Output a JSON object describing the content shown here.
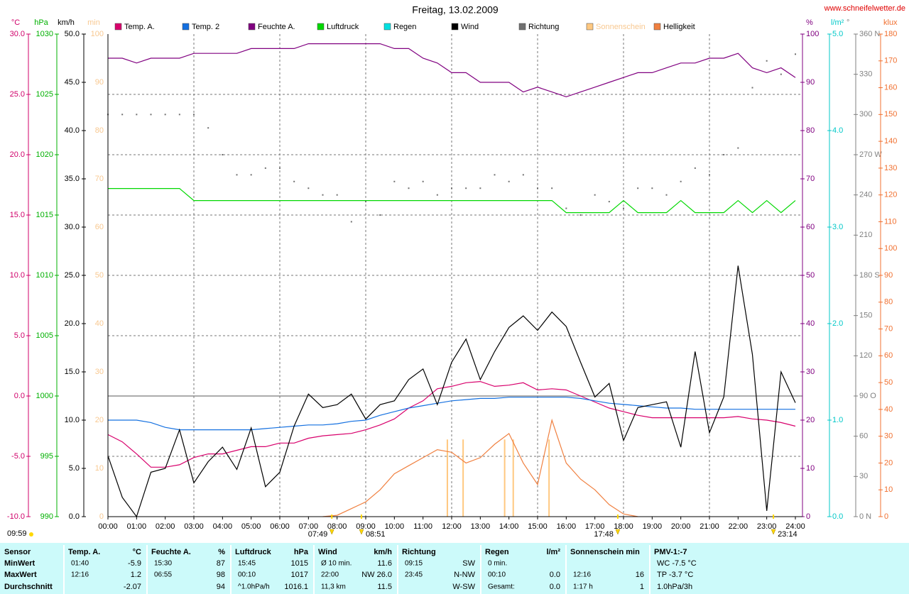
{
  "chart_data": {
    "type": "line",
    "title": "Freitag, 13.02.2009",
    "source": "www.schneifelwetter.de",
    "x": [
      0,
      0.5,
      1,
      1.5,
      2,
      2.5,
      3,
      3.5,
      4,
      4.5,
      5,
      5.5,
      6,
      6.5,
      7,
      7.5,
      8,
      8.5,
      9,
      9.5,
      10,
      10.5,
      11,
      11.5,
      12,
      12.5,
      13,
      13.5,
      14,
      14.5,
      15,
      15.5,
      16,
      16.5,
      17,
      17.5,
      18,
      18.5,
      19,
      19.5,
      20,
      20.5,
      21,
      21.5,
      22,
      22.5,
      23,
      23.5,
      24
    ],
    "xlim": [
      0,
      24
    ],
    "xticks": [
      {
        "value": 0,
        "label": "00:00"
      },
      {
        "value": 1,
        "label": "01:00"
      },
      {
        "value": 2,
        "label": "02:00"
      },
      {
        "value": 3,
        "label": "03:00"
      },
      {
        "value": 4,
        "label": "04:00"
      },
      {
        "value": 5,
        "label": "05:00"
      },
      {
        "value": 6,
        "label": "06:00"
      },
      {
        "value": 7,
        "label": "07:00"
      },
      {
        "value": 8,
        "label": "08:00"
      },
      {
        "value": 9,
        "label": "09:00"
      },
      {
        "value": 10,
        "label": "10:00"
      },
      {
        "value": 11,
        "label": "11:00"
      },
      {
        "value": 12,
        "label": "12:00"
      },
      {
        "value": 13,
        "label": "13:00"
      },
      {
        "value": 14,
        "label": "14:00"
      },
      {
        "value": 15,
        "label": "15:00"
      },
      {
        "value": 16,
        "label": "16:00"
      },
      {
        "value": 17,
        "label": "17:00"
      },
      {
        "value": 18,
        "label": "18:00"
      },
      {
        "value": 19,
        "label": "19:00"
      },
      {
        "value": 20,
        "label": "20:00"
      },
      {
        "value": 21,
        "label": "21:00"
      },
      {
        "value": 22,
        "label": "22:00"
      },
      {
        "value": 23,
        "label": "23:00"
      },
      {
        "value": 24,
        "label": "24:00"
      }
    ],
    "grid": true,
    "axes": {
      "temp": {
        "label": "°C",
        "color": "#d0006a",
        "side": "left",
        "lim": [
          -10,
          30
        ],
        "ticks": [
          {
            "value": -10,
            "label": "-10.0"
          },
          {
            "value": -5,
            "label": "-5.0"
          },
          {
            "value": 0,
            "label": "0.0"
          },
          {
            "value": 5,
            "label": "5.0"
          },
          {
            "value": 10,
            "label": "10.0"
          },
          {
            "value": 15,
            "label": "15.0"
          },
          {
            "value": 20,
            "label": "20.0"
          },
          {
            "value": 25,
            "label": "25.0"
          },
          {
            "value": 30,
            "label": "30.0"
          }
        ]
      },
      "hpa": {
        "label": "hPa",
        "color": "#00b000",
        "side": "left",
        "lim": [
          990,
          1030
        ],
        "ticks": [
          990,
          995,
          1000,
          1005,
          1010,
          1015,
          1020,
          1025,
          1030
        ]
      },
      "kmh": {
        "label": "km/h",
        "color": "#000000",
        "side": "left",
        "lim": [
          0,
          50
        ],
        "ticks": [
          {
            "value": 0,
            "label": "0.0"
          },
          {
            "value": 5,
            "label": "5.0"
          },
          {
            "value": 10,
            "label": "10.0"
          },
          {
            "value": 15,
            "label": "15.0"
          },
          {
            "value": 20,
            "label": "20.0"
          },
          {
            "value": 25,
            "label": "25.0"
          },
          {
            "value": 30,
            "label": "30.0"
          },
          {
            "value": 35,
            "label": "35.0"
          },
          {
            "value": 40,
            "label": "40.0"
          },
          {
            "value": 45,
            "label": "45.0"
          },
          {
            "value": 50,
            "label": "50.0"
          }
        ]
      },
      "min": {
        "label": "min",
        "color": "#f8c890",
        "side": "left",
        "lim": [
          0,
          100
        ],
        "ticks": [
          0,
          10,
          20,
          30,
          40,
          50,
          60,
          70,
          80,
          90,
          100
        ]
      },
      "pct": {
        "label": "%",
        "color": "#800080",
        "side": "right",
        "lim": [
          0,
          100
        ],
        "ticks": [
          0,
          10,
          20,
          30,
          40,
          50,
          60,
          70,
          80,
          90,
          100
        ]
      },
      "rain": {
        "label": "l/m²",
        "color": "#00c8c8",
        "side": "right",
        "lim": [
          0,
          5
        ],
        "ticks": [
          {
            "value": 0,
            "label": "0.0"
          },
          {
            "value": 1,
            "label": "1.0"
          },
          {
            "value": 2,
            "label": "2.0"
          },
          {
            "value": 3,
            "label": "3.0"
          },
          {
            "value": 4,
            "label": "4.0"
          },
          {
            "value": 5,
            "label": "5.0"
          }
        ]
      },
      "deg": {
        "label": "°",
        "color": "#808080",
        "side": "right",
        "lim": [
          0,
          360
        ],
        "ticks": [
          {
            "value": 0,
            "label": "0 N"
          },
          30,
          60,
          {
            "value": 90,
            "label": "90 O"
          },
          120,
          150,
          {
            "value": 180,
            "label": "180 S"
          },
          210,
          240,
          {
            "value": 270,
            "label": "270 W"
          },
          300,
          330,
          {
            "value": 360,
            "label": "360 N"
          }
        ]
      },
      "klux": {
        "label": "klux",
        "color": "#f07030",
        "side": "right",
        "lim": [
          0,
          180
        ],
        "ticks": [
          0,
          10,
          20,
          30,
          40,
          50,
          60,
          70,
          80,
          90,
          100,
          110,
          120,
          130,
          140,
          150,
          160,
          170,
          180
        ]
      }
    },
    "series": [
      {
        "name": "Temp. A.",
        "color": "#d8006c",
        "axis": "temp",
        "type": "line",
        "values": [
          -3.2,
          -3.8,
          -4.8,
          -5.9,
          -5.9,
          -5.7,
          -5.1,
          -4.8,
          -4.8,
          -4.5,
          -4.2,
          -4.2,
          -3.9,
          -3.9,
          -3.5,
          -3.3,
          -3.2,
          -3.1,
          -2.8,
          -2.4,
          -1.9,
          -1.0,
          -0.4,
          0.6,
          0.8,
          1.1,
          1.2,
          0.8,
          0.9,
          1.1,
          0.5,
          0.6,
          0.5,
          0.0,
          -0.5,
          -1.0,
          -1.3,
          -1.6,
          -1.8,
          -1.8,
          -1.8,
          -1.8,
          -1.8,
          -1.8,
          -1.7,
          -1.9,
          -2.0,
          -2.2,
          -2.5
        ]
      },
      {
        "name": "Temp. 2",
        "color": "#1470e0",
        "axis": "temp",
        "type": "line",
        "values": [
          -2.0,
          -2.0,
          -2.0,
          -2.2,
          -2.6,
          -2.8,
          -2.8,
          -2.8,
          -2.8,
          -2.8,
          -2.8,
          -2.7,
          -2.6,
          -2.5,
          -2.4,
          -2.4,
          -2.3,
          -2.1,
          -2.0,
          -1.6,
          -1.3,
          -1.0,
          -0.8,
          -0.6,
          -0.4,
          -0.3,
          -0.2,
          -0.2,
          -0.1,
          -0.1,
          -0.1,
          -0.1,
          -0.1,
          -0.2,
          -0.4,
          -0.6,
          -0.7,
          -0.8,
          -0.9,
          -1.0,
          -1.0,
          -1.1,
          -1.1,
          -1.1,
          -1.1,
          -1.1,
          -1.1,
          -1.1,
          -1.1
        ]
      },
      {
        "name": "Feuchte A.",
        "color": "#800080",
        "axis": "pct",
        "type": "line",
        "values": [
          95,
          95,
          94,
          95,
          95,
          95,
          96,
          96,
          96,
          96,
          97,
          97,
          97,
          97,
          98,
          98,
          98,
          98,
          98,
          98,
          97,
          97,
          95,
          94,
          92,
          92,
          90,
          90,
          90,
          88,
          89,
          88,
          87,
          88,
          89,
          90,
          91,
          92,
          92,
          93,
          94,
          94,
          95,
          95,
          96,
          93,
          92,
          93,
          91
        ]
      },
      {
        "name": "Luftdruck",
        "color": "#00d800",
        "axis": "hpa",
        "type": "line",
        "values": [
          1017.2,
          1017.2,
          1017.2,
          1017.2,
          1017.2,
          1017.2,
          1016.2,
          1016.2,
          1016.2,
          1016.2,
          1016.2,
          1016.2,
          1016.2,
          1016.2,
          1016.2,
          1016.2,
          1016.2,
          1016.2,
          1016.2,
          1016.2,
          1016.2,
          1016.2,
          1016.2,
          1016.2,
          1016.2,
          1016.2,
          1016.2,
          1016.2,
          1016.2,
          1016.2,
          1016.2,
          1016.2,
          1015.2,
          1015.2,
          1015.2,
          1015.2,
          1016.2,
          1015.2,
          1015.2,
          1015.2,
          1016.2,
          1015.2,
          1015.2,
          1015.2,
          1016.2,
          1015.2,
          1016.2,
          1015.2,
          1016.2
        ]
      },
      {
        "name": "Regen",
        "color": "#00e0e0",
        "axis": "rain"
      },
      {
        "name": "Wind",
        "color": "#000000",
        "axis": "kmh",
        "type": "line",
        "values": [
          6.3,
          2.0,
          0.0,
          4.6,
          5.0,
          9.0,
          3.5,
          5.7,
          7.2,
          4.9,
          9.2,
          3.1,
          4.6,
          9.4,
          12.7,
          11.3,
          11.6,
          12.7,
          10.1,
          11.6,
          12.0,
          14.2,
          15.3,
          11.6,
          16.0,
          18.4,
          14.2,
          17.1,
          19.6,
          20.8,
          19.3,
          21.2,
          19.7,
          16.0,
          12.4,
          13.8,
          7.9,
          11.3,
          11.6,
          11.9,
          7.2,
          17.1,
          8.7,
          12.4,
          26.0,
          16.8,
          0.6,
          15.0,
          11.8
        ]
      },
      {
        "name": "Richtung",
        "color": "#707070",
        "axis": "deg",
        "type": "scatter",
        "values": [
          300,
          300,
          300,
          300,
          300,
          300,
          300,
          290,
          270,
          255,
          255,
          260,
          260,
          250,
          245,
          240,
          240,
          220,
          235,
          225,
          250,
          245,
          250,
          240,
          245,
          245,
          245,
          255,
          250,
          255,
          245,
          245,
          230,
          225,
          240,
          235,
          230,
          245,
          245,
          240,
          250,
          260,
          255,
          270,
          275,
          320,
          340,
          330,
          345
        ]
      },
      {
        "name": "Sonnenschein",
        "color": "#ffc880",
        "axis": "min",
        "type": "bar",
        "x": [
          11.85,
          12.4,
          13.85,
          14.15,
          15.4
        ],
        "values": [
          16,
          16,
          16,
          16,
          16
        ]
      },
      {
        "name": "Helligkeit",
        "color": "#f08040",
        "axis": "klux",
        "type": "line",
        "values": [
          null,
          null,
          null,
          null,
          null,
          null,
          null,
          null,
          null,
          null,
          null,
          null,
          null,
          null,
          null,
          0,
          0.5,
          3,
          5.5,
          10,
          16,
          19,
          22,
          25,
          24,
          20,
          22,
          27,
          31,
          20,
          12,
          36,
          20,
          14,
          10,
          4.5,
          1,
          0,
          null,
          null,
          null,
          null,
          null,
          null,
          null,
          null,
          null,
          null,
          null
        ]
      }
    ],
    "annotations": [
      "09:59",
      "07:49",
      "08:51",
      "17:48",
      "23:14"
    ]
  },
  "table": {
    "groups": [
      {
        "title": "Sensor",
        "rows": [
          [
            "MinWert"
          ],
          [
            "MaxWert"
          ],
          [
            "Durchschnitt"
          ]
        ]
      },
      {
        "title": "Temp. A.",
        "unit": "°C",
        "rows": [
          [
            "01:40",
            "-5.9"
          ],
          [
            "12:16",
            "1.2"
          ],
          [
            null,
            "-2.07"
          ]
        ]
      },
      {
        "title": "Feuchte A.",
        "unit": "%",
        "rows": [
          [
            "15:30",
            "87"
          ],
          [
            "06:55",
            "98"
          ],
          [
            null,
            "94"
          ]
        ]
      },
      {
        "title": "Luftdruck",
        "unit": "hPa",
        "rows": [
          [
            "15:45",
            "1015"
          ],
          [
            "00:10",
            "1017"
          ],
          [
            "^1.0hPa/h",
            "1016.1"
          ]
        ]
      },
      {
        "title": "Wind",
        "unit": "km/h",
        "rows": [
          [
            "Ø 10 min.",
            "11.6"
          ],
          [
            "22:00",
            "NW 26.0"
          ],
          [
            "11,3 km",
            "11.5"
          ]
        ]
      },
      {
        "title": "Richtung",
        "rows": [
          [
            "09:15",
            "SW"
          ],
          [
            "23:45",
            "N-NW"
          ],
          [
            null,
            "W-SW"
          ]
        ]
      },
      {
        "title": "Regen",
        "unit": "l/m²",
        "rows": [
          [
            "0 min.",
            null
          ],
          [
            "00:10",
            "0.0"
          ],
          [
            "Gesamt:",
            "0.0"
          ]
        ]
      },
      {
        "title": "Sonnenschein min",
        "rows": [
          [
            null,
            null
          ],
          [
            "12:16",
            "16"
          ],
          [
            "1:17 h",
            "1"
          ]
        ]
      },
      {
        "title": "PMV-1:-7",
        "rows": [
          [
            "WC -7.5 °C"
          ],
          [
            "TP -3.7 °C"
          ],
          [
            "1.0hPa/3h"
          ]
        ]
      }
    ]
  }
}
